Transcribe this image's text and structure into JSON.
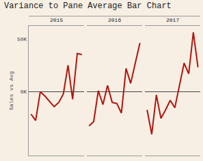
{
  "chart_data": {
    "type": "line",
    "title": "Variance to Pane Average Bar Chart",
    "y_label": "Sales vs Avg",
    "categories": [
      null,
      null,
      null,
      null,
      null,
      null,
      null,
      null,
      null,
      null,
      null,
      null
    ],
    "series": [
      {
        "name": "2015",
        "color": "#b2140f",
        "values": [
          -21,
          -27,
          0,
          -4,
          -9,
          -14,
          -10,
          -2,
          25,
          -7,
          36,
          35
        ]
      },
      {
        "name": "2016",
        "color": "#b2140f",
        "values": [
          -32,
          -28,
          1,
          -12,
          6,
          -10,
          -11,
          -20,
          22,
          8,
          27,
          46
        ]
      },
      {
        "name": "2017",
        "color": "#b2140f",
        "values": [
          -17,
          -40,
          -3,
          -25,
          -17,
          -8,
          -15,
          5,
          27,
          17,
          56,
          23
        ]
      }
    ],
    "ylim": [
      -60,
      62
    ],
    "yticks": [
      {
        "value": 0,
        "label": "0K"
      },
      {
        "value": 50,
        "label": "50K"
      }
    ],
    "grid": false,
    "tick_labels": "y"
  }
}
